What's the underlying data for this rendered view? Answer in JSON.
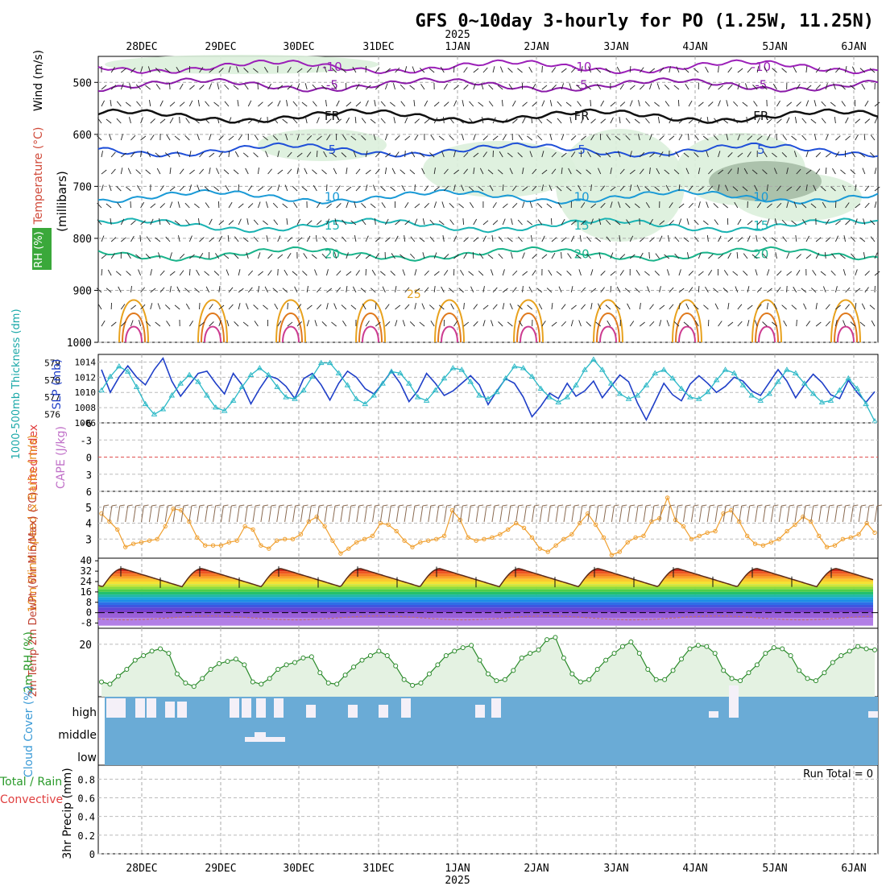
{
  "header": {
    "title": "GFS 0~10day 3-hourly for PO (1.25W, 11.25N)",
    "year_label": "2025"
  },
  "chart_data": {
    "type": "meteogram",
    "time_axis": {
      "date_labels": [
        "28DEC",
        "29DEC",
        "30DEC",
        "31DEC",
        "1JAN",
        "2JAN",
        "3JAN",
        "4JAN",
        "5JAN",
        "6JAN"
      ],
      "year": "2025",
      "hours_total": 238,
      "start_hour_before_first_label": 12
    },
    "panels": [
      {
        "id": "upper_air",
        "ylabel_parts": [
          "Wind (m/s)",
          "Temperature (°C)",
          "RH (%)",
          "(millibars)"
        ],
        "y_ticks": [
          500,
          600,
          700,
          800,
          900,
          1000
        ],
        "ylim": [
          450,
          1000
        ],
        "isotherms": [
          {
            "label": "-10",
            "color": "#9b1fb8",
            "pressure": 470
          },
          {
            "label": "-5",
            "color": "#8a1aa8",
            "pressure": 505
          },
          {
            "label": "FR",
            "color": "#111111",
            "pressure": 565
          },
          {
            "label": "5",
            "color": "#1f4fd8",
            "pressure": 630
          },
          {
            "label": "10",
            "color": "#1a9ad6",
            "pressure": 720
          },
          {
            "label": "15",
            "color": "#19b3b3",
            "pressure": 775
          },
          {
            "label": "20",
            "color": "#19b38a",
            "pressure": 830
          },
          {
            "label": "25",
            "color": "#e6a21e",
            "pressure": 900
          }
        ]
      },
      {
        "id": "slp_thickness",
        "ylabel_left": "1000-500mb Thickness (dm)",
        "ylabel_right": "SLP (mb)",
        "thickness_ticks": [
          "579",
          "578",
          "577",
          "576"
        ],
        "slp_ticks": [
          "1014",
          "1012",
          "1010",
          "1008",
          "1006"
        ],
        "slp_range": [
          1006,
          1015
        ],
        "thickness_range": [
          575.5,
          579.5
        ],
        "slp_series": [
          1013,
          1010,
          1012,
          1013.5,
          1012,
          1011,
          1013,
          1014.5,
          1011.5,
          1009.5,
          1011,
          1012.5,
          1012.8,
          1011.2,
          1009.8,
          1012.5,
          1011,
          1008.5,
          1010.5,
          1012.2,
          1011.8,
          1010.8,
          1009.2,
          1011.8,
          1012.5,
          1011,
          1009,
          1011.2,
          1012.8,
          1012,
          1010.5,
          1009.8,
          1011.2,
          1012.8,
          1011.2,
          1008.8,
          1010.2,
          1012.5,
          1011.2,
          1009.6,
          1010.2,
          1011.2,
          1012.2,
          1011,
          1008.4,
          1010.2,
          1011.8,
          1011.2,
          1009.4,
          1006.8,
          1008.2,
          1009.9,
          1009.2,
          1011.2,
          1009.5,
          1010.2,
          1011.5,
          1009.3,
          1010.8,
          1012.3,
          1011.4,
          1008.6,
          1006.4,
          1008.8,
          1011.2,
          1009.7,
          1008.9,
          1011.1,
          1012.2,
          1011.2,
          1010,
          1010.8,
          1012,
          1011.5,
          1010.2,
          1009.6,
          1011.3,
          1013,
          1011.5,
          1009.3,
          1011,
          1012.4,
          1011.3,
          1009.7,
          1009.2,
          1011.6,
          1010,
          1008.7,
          1010.1
        ],
        "thickness_series": [
          577.4,
          578.2,
          578.8,
          578.5,
          577.6,
          576.6,
          576,
          576.3,
          577.1,
          577.8,
          578.3,
          577.9,
          577.1,
          576.4,
          576.2,
          576.8,
          577.6,
          578.3,
          578.7,
          578.3,
          577.6,
          577,
          576.9,
          577.4,
          578.2,
          579,
          579,
          578.4,
          577.7,
          576.9,
          576.6,
          577.1,
          577.8,
          578.5,
          578.4,
          577.8,
          577,
          576.8,
          577.4,
          578.1,
          578.7,
          578.6,
          577.9,
          577.1,
          576.9,
          577.3,
          578.1,
          578.8,
          578.7,
          578.2,
          577.5,
          577,
          576.7,
          577,
          577.7,
          578.6,
          579.2,
          578.6,
          577.8,
          577.2,
          576.9,
          577.1,
          577.7,
          578.4,
          578.6,
          578.1,
          577.5,
          577,
          576.9,
          577.3,
          578,
          578.6,
          578.4,
          577.7,
          577.1,
          576.8,
          577.2,
          577.9,
          578.6,
          578.4,
          577.8,
          577.2,
          576.7,
          576.8,
          577.4,
          578.1,
          577.5,
          576.6,
          575.6
        ]
      },
      {
        "id": "cape_li",
        "ylabel_left": "Lifted Index",
        "ylabel_right": "CAPE (J/kg)",
        "y_ticks": [
          "-6",
          "-3",
          "0",
          "3",
          "6"
        ],
        "ylim": [
          -6,
          6
        ]
      },
      {
        "id": "wind10m",
        "ylabel": "10m Wind Speed & Barbs (m/s)",
        "y_ticks": [
          "3",
          "4",
          "5"
        ],
        "ylim": [
          1.8,
          6.0
        ],
        "speed_series": [
          4.6,
          4.1,
          3.6,
          2.5,
          2.7,
          2.8,
          2.9,
          3.0,
          3.8,
          4.9,
          4.8,
          4.1,
          3.1,
          2.6,
          2.6,
          2.6,
          2.8,
          2.9,
          3.8,
          3.6,
          2.6,
          2.4,
          2.9,
          3.0,
          3.0,
          3.3,
          4.1,
          4.4,
          3.8,
          2.9,
          2.1,
          2.4,
          2.8,
          3.0,
          3.2,
          4.0,
          3.9,
          3.5,
          2.9,
          2.5,
          2.8,
          2.9,
          3.0,
          3.2,
          4.8,
          4.2,
          3.1,
          2.9,
          3.0,
          3.1,
          3.3,
          3.6,
          4.0,
          3.7,
          3.1,
          2.4,
          2.2,
          2.6,
          3.0,
          3.3,
          4.0,
          4.6,
          3.9,
          3.1,
          2.0,
          2.2,
          2.8,
          3.1,
          3.2,
          4.1,
          4.3,
          5.6,
          4.2,
          3.8,
          3.0,
          3.2,
          3.4,
          3.5,
          4.6,
          4.8,
          4.1,
          3.2,
          2.7,
          2.6,
          2.8,
          3.0,
          3.5,
          3.9,
          4.4,
          4.1,
          3.2,
          2.5,
          2.6,
          3.0,
          3.1,
          3.3,
          4.0,
          3.4
        ]
      },
      {
        "id": "temp2m",
        "ylabel": "2m Temp 2m DewPt (6hr Min/Max) (°C)",
        "y_ticks": [
          "40",
          "32",
          "24",
          "16",
          "8",
          "0",
          "-8"
        ],
        "ylim": [
          -12,
          42
        ],
        "color_bands": [
          {
            "low": 32,
            "high": 40,
            "color": "#d02a1a"
          },
          {
            "low": 30,
            "high": 32,
            "color": "#ee5522"
          },
          {
            "low": 28,
            "high": 30,
            "color": "#f57a22"
          },
          {
            "low": 26,
            "high": 28,
            "color": "#f9a52a"
          },
          {
            "low": 24,
            "high": 26,
            "color": "#fbc92e"
          },
          {
            "low": 22,
            "high": 24,
            "color": "#f5e234"
          },
          {
            "low": 20,
            "high": 22,
            "color": "#cce53a"
          },
          {
            "low": 18,
            "high": 20,
            "color": "#8fdb3d"
          },
          {
            "low": 16,
            "high": 18,
            "color": "#4fcc48"
          },
          {
            "low": 14,
            "high": 16,
            "color": "#22c06e"
          },
          {
            "low": 12,
            "high": 14,
            "color": "#1fb8a4"
          },
          {
            "low": 10,
            "high": 12,
            "color": "#1aaad4"
          },
          {
            "low": 8,
            "high": 10,
            "color": "#1c8ce6"
          },
          {
            "low": 6,
            "high": 8,
            "color": "#2e6ee8"
          },
          {
            "low": 4,
            "high": 6,
            "color": "#3f55e0"
          },
          {
            "low": 2,
            "high": 4,
            "color": "#5a45d6"
          },
          {
            "low": 0,
            "high": 2,
            "color": "#7a3ccc"
          },
          {
            "low": -4,
            "high": 0,
            "color": "#9a5fd8"
          },
          {
            "low": -12,
            "high": -4,
            "color": "#b27fe6"
          }
        ],
        "temp_max": 34,
        "temp_min": 20,
        "dewpoint_avg": -4
      },
      {
        "id": "rh2m",
        "ylabel": "2m RH (%)",
        "y_ticks": [
          "20"
        ],
        "ylim": [
          -3,
          27
        ],
        "rh_series": [
          3.5,
          2.5,
          6,
          9,
          13,
          15,
          17,
          18,
          16,
          7,
          3,
          1.5,
          5,
          9,
          11.5,
          12.5,
          13.5,
          11,
          3.5,
          2.5,
          5,
          9,
          11,
          12,
          14,
          14.5,
          7.5,
          3,
          2.5,
          6.5,
          10,
          13,
          15,
          17,
          15,
          10.5,
          4.5,
          2,
          3,
          7,
          11,
          15,
          17,
          18.5,
          19.5,
          13,
          7,
          4,
          4.5,
          8.5,
          14,
          16,
          17.5,
          22,
          23,
          14,
          7,
          3.5,
          4.5,
          9,
          13,
          16,
          19,
          21,
          16,
          9,
          4.5,
          4.5,
          8.5,
          13.5,
          18,
          19.5,
          19,
          16,
          8.5,
          5,
          4,
          7.5,
          11,
          16,
          18.5,
          18,
          15,
          8.5,
          5,
          4,
          7.5,
          12,
          15,
          17,
          19,
          18,
          17.5
        ]
      },
      {
        "id": "cloud",
        "ylabel": "Cloud Cover (%)",
        "rows": [
          "high",
          "middle",
          "low"
        ],
        "background": "#6aabd6"
      },
      {
        "id": "precip",
        "ylabel": "3hr Precip (mm)",
        "legend_total_rain": "Total / Rain",
        "legend_convective": "Convective",
        "run_total": "Run Total = 0",
        "y_ticks": [
          "0",
          "0.2",
          "0.4",
          "0.6",
          "0.8"
        ],
        "ylim": [
          0,
          0.95
        ]
      }
    ]
  }
}
